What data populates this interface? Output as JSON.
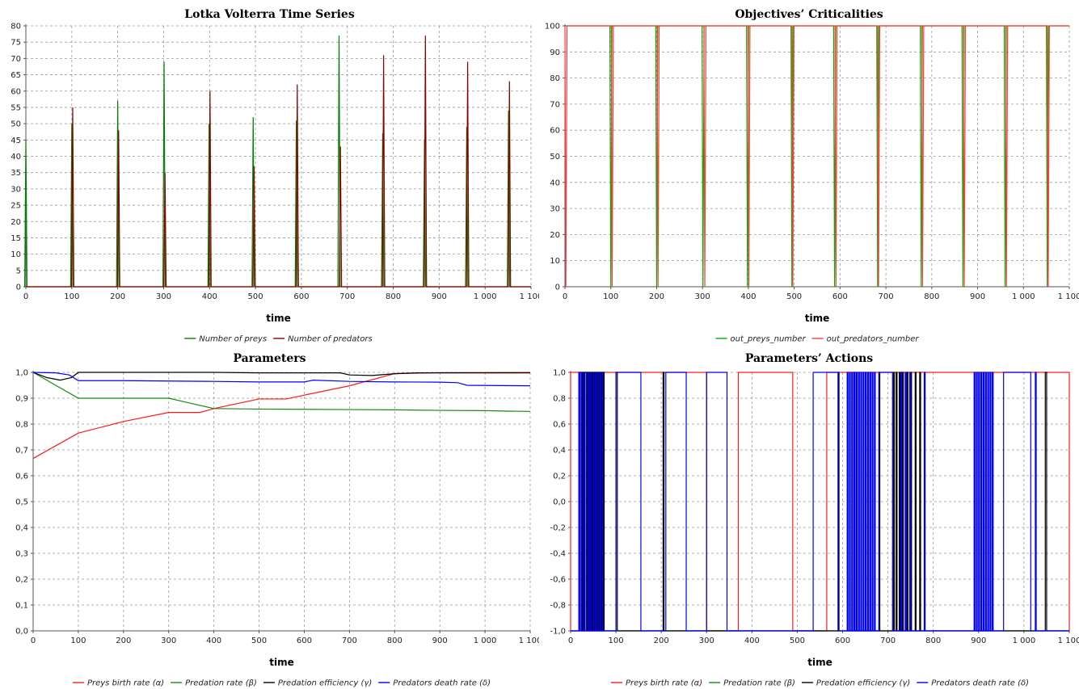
{
  "chart_data": [
    {
      "type": "line",
      "title": "Lotka Volterra Time Series",
      "xlabel": "time",
      "ylabel": "",
      "xlim": [
        0,
        1100
      ],
      "ylim": [
        0,
        80
      ],
      "xticks": [
        0,
        100,
        200,
        300,
        400,
        500,
        600,
        700,
        800,
        900,
        1000,
        1100
      ],
      "xtick_labels": [
        "0",
        "100",
        "200",
        "300",
        "400",
        "500",
        "600",
        "700",
        "800",
        "900",
        "1 000",
        "1 100"
      ],
      "yticks": [
        0,
        5,
        10,
        15,
        20,
        25,
        30,
        35,
        40,
        45,
        50,
        55,
        60,
        65,
        70,
        75,
        80
      ],
      "ytick_labels": [
        "0",
        "5",
        "10",
        "15",
        "20",
        "25",
        "30",
        "35",
        "40",
        "45",
        "50",
        "55",
        "60",
        "65",
        "70",
        "75",
        "80"
      ],
      "grid": true,
      "legend_position": "bottom",
      "series": [
        {
          "name": "Number of preys",
          "color": "#008000",
          "spikes": [
            [
              0,
              45
            ],
            [
              100,
              50
            ],
            [
              200,
              57
            ],
            [
              301,
              69
            ],
            [
              399,
              50
            ],
            [
              495,
              52
            ],
            [
              589,
              51
            ],
            [
              682,
              77
            ],
            [
              777,
              47
            ],
            [
              868,
              45
            ],
            [
              960,
              49
            ],
            [
              1051,
              54
            ]
          ]
        },
        {
          "name": "Number of predators",
          "color": "#8b0000",
          "spikes": [
            [
              102,
              55
            ],
            [
              202,
              48
            ],
            [
              303,
              35
            ],
            [
              401,
              60
            ],
            [
              497,
              37
            ],
            [
              591,
              62
            ],
            [
              685,
              43
            ],
            [
              779,
              71
            ],
            [
              870,
              77
            ],
            [
              962,
              69
            ],
            [
              1053,
              63
            ]
          ]
        }
      ]
    },
    {
      "type": "line",
      "title": "Objectives’ Criticalities",
      "xlabel": "time",
      "ylabel": "",
      "xlim": [
        0,
        1100
      ],
      "ylim": [
        0,
        100
      ],
      "xticks": [
        0,
        100,
        200,
        300,
        400,
        500,
        600,
        700,
        800,
        900,
        1000,
        1100
      ],
      "xtick_labels": [
        "0",
        "100",
        "200",
        "300",
        "400",
        "500",
        "600",
        "700",
        "800",
        "900",
        "1 000",
        "1 100"
      ],
      "yticks": [
        0,
        10,
        20,
        30,
        40,
        50,
        60,
        70,
        80,
        90,
        100
      ],
      "ytick_labels": [
        "0",
        "10",
        "20",
        "30",
        "40",
        "50",
        "60",
        "70",
        "80",
        "90",
        "100"
      ],
      "grid": true,
      "legend_position": "bottom",
      "series": [
        {
          "name": "out_preys_number",
          "color": "#00b000",
          "level": 100,
          "dips": [
            [
              100,
              0
            ],
            [
              200,
              0
            ],
            [
              301,
              0
            ],
            [
              398,
              0
            ],
            [
              495,
              0
            ],
            [
              588,
              0
            ],
            [
              682,
              0
            ],
            [
              777,
              0
            ],
            [
              868,
              0
            ],
            [
              960,
              0
            ],
            [
              1052,
              0
            ]
          ]
        },
        {
          "name": "out_predators_number",
          "color": "#ff3b3b",
          "level": 100,
          "dips": [
            [
              2,
              0
            ],
            [
              103,
              0
            ],
            [
              203,
              0
            ],
            [
              305,
              0
            ],
            [
              401,
              0
            ],
            [
              497,
              0
            ],
            [
              591,
              0
            ],
            [
              684,
              0
            ],
            [
              780,
              0
            ],
            [
              871,
              0
            ],
            [
              963,
              0
            ],
            [
              1054,
              0
            ]
          ]
        }
      ]
    },
    {
      "type": "line",
      "title": "Parameters",
      "xlabel": "time",
      "ylabel": "",
      "xlim": [
        0,
        1100
      ],
      "ylim": [
        0,
        1
      ],
      "xticks": [
        0,
        100,
        200,
        300,
        400,
        500,
        600,
        700,
        800,
        900,
        1000,
        1100
      ],
      "xtick_labels": [
        "0",
        "100",
        "200",
        "300",
        "400",
        "500",
        "600",
        "700",
        "800",
        "900",
        "1 000",
        "1 100"
      ],
      "yticks": [
        0,
        0.1,
        0.2,
        0.3,
        0.4,
        0.5,
        0.6,
        0.7,
        0.8,
        0.9,
        1
      ],
      "ytick_labels": [
        "0,0",
        "0,1",
        "0,2",
        "0,3",
        "0,4",
        "0,5",
        "0,6",
        "0,7",
        "0,8",
        "0,9",
        "1,0"
      ],
      "grid": true,
      "legend_position": "bottom",
      "series": [
        {
          "name": "Preys birth rate (α)",
          "color": "#ff1a1a",
          "points": [
            [
              0,
              0.667
            ],
            [
              100,
              0.765
            ],
            [
              200,
              0.81
            ],
            [
              300,
              0.845
            ],
            [
              370,
              0.845
            ],
            [
              400,
              0.86
            ],
            [
              500,
              0.897
            ],
            [
              560,
              0.897
            ],
            [
              600,
              0.912
            ],
            [
              700,
              0.948
            ],
            [
              800,
              0.995
            ],
            [
              900,
              0.999
            ],
            [
              1100,
              1.0
            ]
          ]
        },
        {
          "name": "Predation rate (β)",
          "color": "#138c13",
          "points": [
            [
              0,
              1.0
            ],
            [
              100,
              0.9
            ],
            [
              200,
              0.9
            ],
            [
              300,
              0.9
            ],
            [
              350,
              0.88
            ],
            [
              400,
              0.86
            ],
            [
              500,
              0.858
            ],
            [
              600,
              0.857
            ],
            [
              700,
              0.856
            ],
            [
              800,
              0.855
            ],
            [
              900,
              0.853
            ],
            [
              1000,
              0.852
            ],
            [
              1050,
              0.85
            ],
            [
              1100,
              0.849
            ]
          ]
        },
        {
          "name": "Predation efficiency (γ)",
          "color": "#000000",
          "points": [
            [
              0,
              1.0
            ],
            [
              30,
              0.98
            ],
            [
              60,
              0.97
            ],
            [
              85,
              0.98
            ],
            [
              100,
              1.0
            ],
            [
              400,
              1.0
            ],
            [
              500,
              0.998
            ],
            [
              680,
              0.998
            ],
            [
              700,
              0.99
            ],
            [
              750,
              0.988
            ],
            [
              800,
              0.995
            ],
            [
              850,
              0.998
            ],
            [
              1100,
              0.998
            ]
          ]
        },
        {
          "name": "Predators death rate (δ)",
          "color": "#0000ff",
          "points": [
            [
              0,
              1.0
            ],
            [
              50,
              0.998
            ],
            [
              80,
              0.99
            ],
            [
              100,
              0.968
            ],
            [
              200,
              0.968
            ],
            [
              400,
              0.965
            ],
            [
              500,
              0.963
            ],
            [
              600,
              0.963
            ],
            [
              620,
              0.97
            ],
            [
              700,
              0.965
            ],
            [
              800,
              0.963
            ],
            [
              900,
              0.962
            ],
            [
              940,
              0.96
            ],
            [
              960,
              0.95
            ],
            [
              1100,
              0.948
            ]
          ]
        }
      ]
    },
    {
      "type": "line",
      "title": "Parameters’ Actions",
      "xlabel": "time",
      "ylabel": "",
      "xlim": [
        0,
        1100
      ],
      "ylim": [
        -1,
        1
      ],
      "xticks": [
        0,
        100,
        200,
        300,
        400,
        500,
        600,
        700,
        800,
        900,
        1000,
        1100
      ],
      "xtick_labels": [
        "0",
        "100",
        "200",
        "300",
        "400",
        "500",
        "600",
        "700",
        "800",
        "900",
        "1 000",
        "1 100"
      ],
      "yticks": [
        -1,
        -0.8,
        -0.6,
        -0.4,
        -0.2,
        0,
        0.2,
        0.4,
        0.6,
        0.8,
        1
      ],
      "ytick_labels": [
        "-1,0",
        "-0,8",
        "-0,6",
        "-0,4",
        "-0,2",
        "0,0",
        "0,2",
        "0,4",
        "0,6",
        "0,8",
        "1,0"
      ],
      "grid": true,
      "legend_position": "bottom",
      "series": [
        {
          "name": "Preys birth rate (α)",
          "color": "#ff1a1a",
          "high_intervals": [
            [
              0,
              300
            ],
            [
              370,
              490
            ],
            [
              565,
              1100
            ]
          ]
        },
        {
          "name": "Predation rate (β)",
          "color": "#138c13",
          "high_intervals": []
        },
        {
          "name": "Predation efficiency (γ)",
          "color": "#000000",
          "high_intervals": [
            [
              20,
              23
            ],
            [
              26,
              28
            ],
            [
              31,
              34
            ],
            [
              37,
              39
            ],
            [
              42,
              44
            ],
            [
              47,
              49
            ],
            [
              52,
              54
            ],
            [
              57,
              59
            ],
            [
              62,
              64
            ],
            [
              67,
              69
            ],
            [
              72,
              74
            ],
            [
              100,
              103
            ],
            [
              204,
              206
            ],
            [
              590,
              592
            ],
            [
              625,
              627
            ],
            [
              680,
              682
            ],
            [
              712,
              714
            ],
            [
              718,
              720
            ],
            [
              725,
              727
            ],
            [
              732,
              734
            ],
            [
              742,
              744
            ],
            [
              750,
              752
            ],
            [
              760,
              762
            ],
            [
              770,
              772
            ],
            [
              1047,
              1050
            ]
          ]
        },
        {
          "name": "Predators death rate (δ)",
          "color": "#0000ff",
          "high_intervals": [
            [
              18,
              20
            ],
            [
              24,
              25
            ],
            [
              29,
              30
            ],
            [
              35,
              36
            ],
            [
              40,
              41
            ],
            [
              45,
              46
            ],
            [
              50,
              51
            ],
            [
              55,
              56
            ],
            [
              60,
              61
            ],
            [
              65,
              66
            ],
            [
              70,
              71
            ],
            [
              100,
              155
            ],
            [
              210,
              255
            ],
            [
              300,
              345
            ],
            [
              535,
              590
            ],
            [
              610,
              612
            ],
            [
              615,
              617
            ],
            [
              620,
              622
            ],
            [
              625,
              627
            ],
            [
              630,
              632
            ],
            [
              635,
              637
            ],
            [
              640,
              642
            ],
            [
              645,
              647
            ],
            [
              650,
              652
            ],
            [
              655,
              657
            ],
            [
              660,
              662
            ],
            [
              665,
              667
            ],
            [
              670,
              672
            ],
            [
              680,
              710
            ],
            [
              728,
              730
            ],
            [
              738,
              740
            ],
            [
              748,
              750
            ],
            [
              780,
              782
            ],
            [
              890,
              892
            ],
            [
              895,
              897
            ],
            [
              900,
              902
            ],
            [
              905,
              907
            ],
            [
              910,
              912
            ],
            [
              915,
              917
            ],
            [
              920,
              922
            ],
            [
              925,
              927
            ],
            [
              930,
              932
            ],
            [
              955,
              1015
            ],
            [
              1025,
              1027
            ]
          ]
        }
      ]
    }
  ]
}
